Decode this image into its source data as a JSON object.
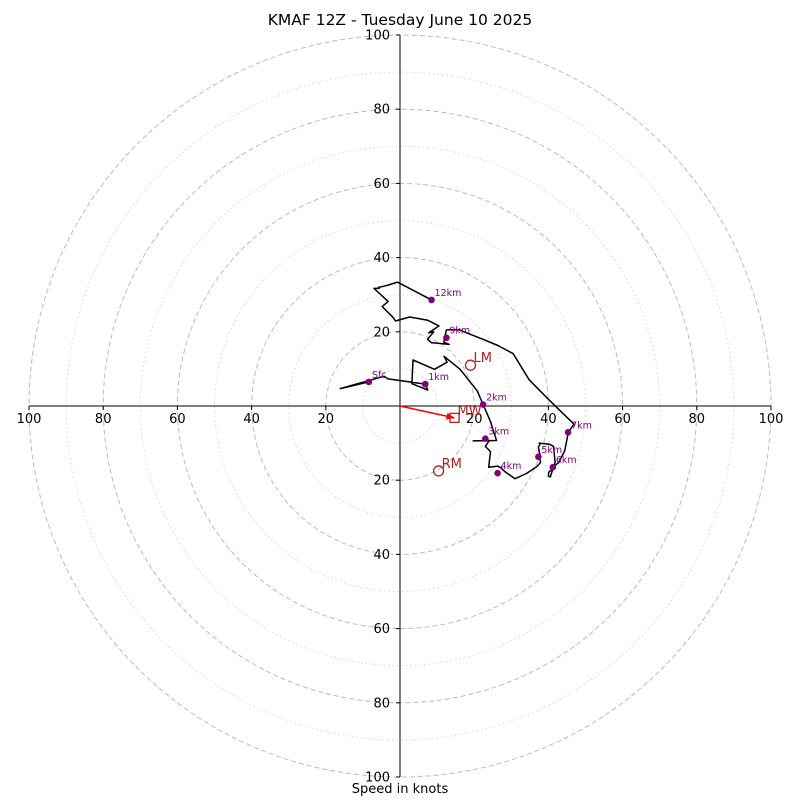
{
  "title": "KMAF 12Z - Tuesday June 10 2025",
  "footer": {
    "axis_label": "Speed in knots"
  },
  "chart_data": {
    "type": "hodograph",
    "units": "knots",
    "range": [
      -100,
      100
    ],
    "rings_major": [
      20,
      40,
      60,
      80,
      100
    ],
    "rings_minor": [
      10,
      30,
      50,
      70,
      90
    ],
    "x_tick_values": [
      -100,
      -80,
      -60,
      -40,
      -20,
      20,
      40,
      60,
      80,
      100
    ],
    "y_tick_values": [
      -100,
      -80,
      -60,
      -40,
      -20,
      20,
      40,
      60,
      80,
      100
    ],
    "x_tick_labels": [
      "100",
      "80",
      "60",
      "40",
      "20",
      "20",
      "40",
      "60",
      "80",
      "100"
    ],
    "y_tick_labels": [
      "100",
      "80",
      "60",
      "40",
      "20",
      "20",
      "40",
      "60",
      "80",
      "100"
    ],
    "grid": true,
    "trace": [
      [
        -8.4,
        6.5
      ],
      [
        -16.1,
        4.7
      ],
      [
        -4.3,
        8.0
      ],
      [
        -3.2,
        7.3
      ],
      [
        6.8,
        5.9
      ],
      [
        7.5,
        4.3
      ],
      [
        3.2,
        6.0
      ],
      [
        3.5,
        12.4
      ],
      [
        9.3,
        9.9
      ],
      [
        12.7,
        11.8
      ],
      [
        11.9,
        13.4
      ],
      [
        16.2,
        9.9
      ],
      [
        20.8,
        4.1
      ],
      [
        22.4,
        0.4
      ],
      [
        24.4,
        -4.2
      ],
      [
        26.0,
        -9.3
      ],
      [
        19.7,
        -9.4
      ],
      [
        24.1,
        -9.3
      ],
      [
        23.0,
        -10.9
      ],
      [
        24.4,
        -12.3
      ],
      [
        23.9,
        -16.5
      ],
      [
        26.3,
        -16.2
      ],
      [
        27.1,
        -16.6
      ],
      [
        28.3,
        -17.7
      ],
      [
        31.0,
        -19.6
      ],
      [
        34.1,
        -18.2
      ],
      [
        36.9,
        -16.3
      ],
      [
        37.9,
        -15.2
      ],
      [
        37.5,
        -13.6
      ],
      [
        37.7,
        -13.3
      ],
      [
        37.3,
        -11.1
      ],
      [
        37.8,
        -10.2
      ],
      [
        37.5,
        -10.0
      ],
      [
        40.3,
        -10.3
      ],
      [
        41.4,
        -10.9
      ],
      [
        41.8,
        -15.2
      ],
      [
        40.5,
        -19.1
      ],
      [
        40.0,
        -18.9
      ],
      [
        40.1,
        -17.8
      ],
      [
        40.9,
        -17.2
      ],
      [
        41.6,
        -16.2
      ],
      [
        42.7,
        -15.3
      ],
      [
        44.4,
        -12.1
      ],
      [
        45.4,
        -7.0
      ],
      [
        46.9,
        -4.9
      ],
      [
        40.0,
        1.8
      ],
      [
        34.8,
        7.1
      ],
      [
        30.5,
        14.1
      ],
      [
        26.4,
        16.3
      ],
      [
        22.3,
        18.0
      ],
      [
        18.0,
        19.7
      ],
      [
        15.8,
        20.6
      ],
      [
        12.5,
        20.5
      ],
      [
        11.8,
        17.2
      ],
      [
        13.3,
        16.6
      ],
      [
        8.4,
        17.1
      ],
      [
        7.4,
        18.0
      ],
      [
        9.1,
        20.0
      ],
      [
        7.7,
        19.7
      ],
      [
        10.5,
        21.6
      ],
      [
        7.5,
        23.1
      ],
      [
        2.6,
        24.0
      ],
      [
        -1.2,
        22.9
      ],
      [
        -1.9,
        23.9
      ],
      [
        -4.8,
        26.8
      ],
      [
        -3.2,
        28.2
      ],
      [
        -7.0,
        31.7
      ],
      [
        -5.6,
        31.7
      ],
      [
        -5.8,
        32.0
      ],
      [
        -4.3,
        32.3
      ],
      [
        -3.2,
        32.6
      ],
      [
        -0.7,
        33.4
      ],
      [
        8.5,
        28.6
      ]
    ],
    "height_markers": [
      {
        "label": "Sfc",
        "u": -8.4,
        "v": 6.5
      },
      {
        "label": "1km",
        "u": 6.8,
        "v": 5.9
      },
      {
        "label": "2km",
        "u": 22.4,
        "v": 0.4
      },
      {
        "label": "3km",
        "u": 23.0,
        "v": -8.8
      },
      {
        "label": "4km",
        "u": 26.3,
        "v": -18.1
      },
      {
        "label": "5km",
        "u": 37.3,
        "v": -13.7
      },
      {
        "label": "6km",
        "u": 41.2,
        "v": -16.5
      },
      {
        "label": "7km",
        "u": 45.3,
        "v": -7.1
      },
      {
        "label": "9km",
        "u": 12.5,
        "v": 18.4
      },
      {
        "label": "12km",
        "u": 8.5,
        "v": 28.6
      }
    ],
    "storm_motion": [
      {
        "label": "LM",
        "u": 19.0,
        "v": 11.0,
        "marker": "circle"
      },
      {
        "label": "RM",
        "u": 10.4,
        "v": -17.5,
        "marker": "circle"
      },
      {
        "label": "MW",
        "u": 14.7,
        "v": -3.2,
        "marker": "square"
      }
    ],
    "shear_vector": {
      "from": [
        0,
        0
      ],
      "to": [
        14.7,
        -3.2
      ]
    },
    "colors": {
      "trace": "#000000",
      "height_marker": "#800080",
      "storm_motion": "#b22222",
      "shear_vector": "#ff0000",
      "grid_major": "#bbbbbb",
      "grid_minor": "#d4d4d4",
      "axes": "#000000"
    }
  }
}
